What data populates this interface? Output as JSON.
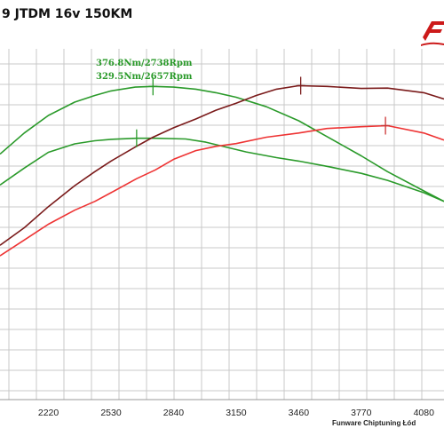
{
  "chart_data": {
    "type": "line",
    "title": "9 JTDM 16v 150KM",
    "credit": "Funware Chiptuning Łód",
    "xlabel": "",
    "ylabel": "",
    "x_ticks": [
      2220,
      2530,
      2840,
      3150,
      3460,
      3770,
      4080
    ],
    "xlim": [
      1980,
      4180
    ],
    "ylim": [
      0,
      1
    ],
    "grid": true,
    "legend": "none",
    "colors": {
      "torque_stock": "#2a9a2a",
      "torque_tuned": "#2a9a2a",
      "power_stock": "#ee3333",
      "power_tuned": "#7a1a1a",
      "grid": "#c8c8c8"
    },
    "series": [
      {
        "key": "torque_tuned",
        "x": [
          1980,
          2100,
          2220,
          2350,
          2450,
          2530,
          2650,
          2738,
          2840,
          2950,
          3050,
          3150,
          3300,
          3460,
          3600,
          3770,
          3900,
          4080,
          4180
        ],
        "y": [
          0.7,
          0.76,
          0.81,
          0.848,
          0.867,
          0.88,
          0.891,
          0.893,
          0.891,
          0.885,
          0.875,
          0.862,
          0.835,
          0.795,
          0.75,
          0.695,
          0.65,
          0.595,
          0.565
        ]
      },
      {
        "key": "torque_stock",
        "x": [
          1980,
          2100,
          2220,
          2350,
          2450,
          2530,
          2657,
          2750,
          2900,
          3000,
          3100,
          3200,
          3350,
          3460,
          3600,
          3770,
          3900,
          4080,
          4180
        ],
        "y": [
          0.612,
          0.66,
          0.705,
          0.729,
          0.738,
          0.742,
          0.745,
          0.745,
          0.743,
          0.734,
          0.72,
          0.706,
          0.69,
          0.68,
          0.665,
          0.645,
          0.625,
          0.59,
          0.565
        ]
      },
      {
        "key": "power_tuned",
        "x": [
          1980,
          2100,
          2220,
          2350,
          2450,
          2530,
          2650,
          2738,
          2840,
          2950,
          3050,
          3150,
          3250,
          3350,
          3460,
          3600,
          3770,
          3900,
          4080,
          4180
        ],
        "y": [
          0.44,
          0.49,
          0.55,
          0.61,
          0.65,
          0.68,
          0.72,
          0.748,
          0.775,
          0.8,
          0.825,
          0.845,
          0.867,
          0.885,
          0.895,
          0.893,
          0.887,
          0.888,
          0.875,
          0.857
        ]
      },
      {
        "key": "power_stock",
        "x": [
          1980,
          2100,
          2220,
          2350,
          2450,
          2530,
          2657,
          2750,
          2840,
          2950,
          3050,
          3150,
          3300,
          3460,
          3600,
          3770,
          3900,
          4080,
          4180
        ],
        "y": [
          0.41,
          0.455,
          0.5,
          0.54,
          0.565,
          0.59,
          0.63,
          0.655,
          0.685,
          0.71,
          0.722,
          0.73,
          0.748,
          0.76,
          0.773,
          0.778,
          0.781,
          0.76,
          0.74
        ]
      }
    ],
    "markers": [
      {
        "series": "torque_tuned",
        "x": 2738,
        "y": 0.893,
        "color": "#2a9a2a"
      },
      {
        "series": "torque_stock",
        "x": 2657,
        "y": 0.745,
        "color": "#2a9a2a"
      },
      {
        "series": "power_tuned",
        "x": 3470,
        "y": 0.895,
        "color": "#7a1a1a"
      },
      {
        "series": "power_stock",
        "x": 3890,
        "y": 0.781,
        "color": "#cc3333"
      }
    ],
    "annotations": [
      {
        "text": "376.8Nm/2738Rpm",
        "color": "#2a9a2a"
      },
      {
        "text": "329.5Nm/2657Rpm",
        "color": "#2a9a2a"
      }
    ]
  }
}
